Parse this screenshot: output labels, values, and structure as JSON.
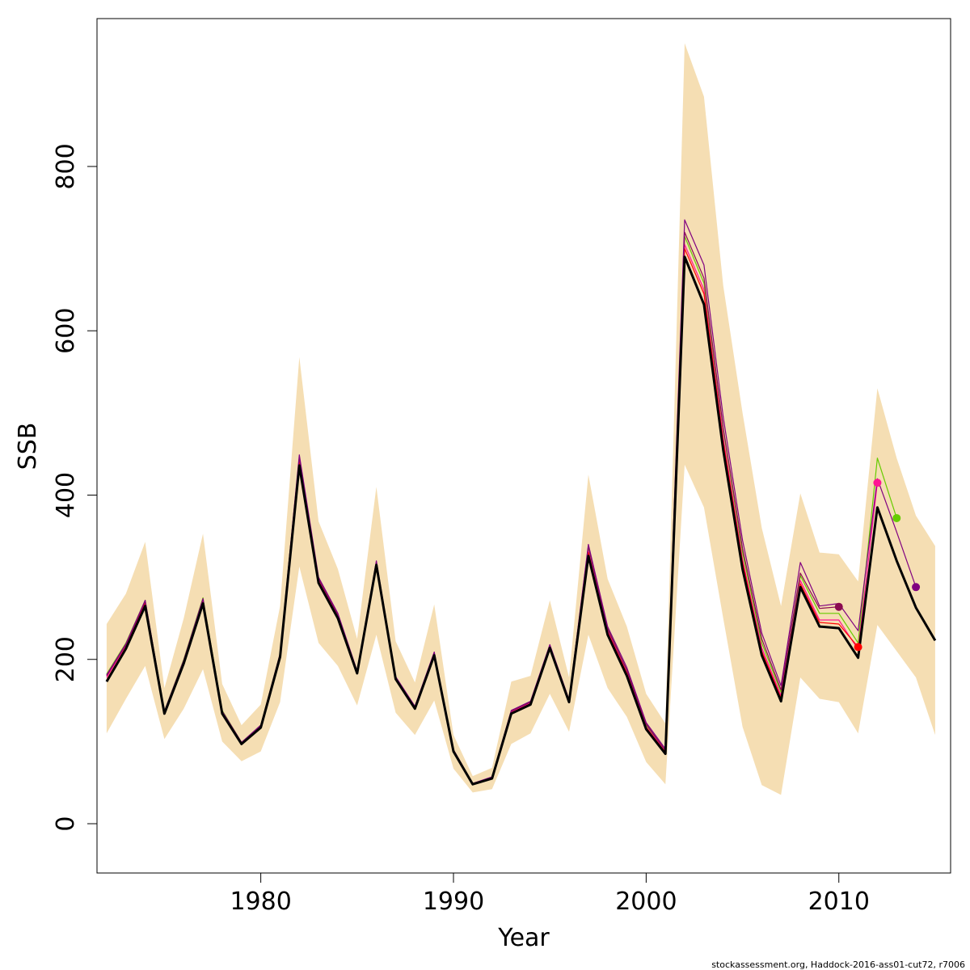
{
  "chart_data": {
    "type": "line",
    "xlabel": "Year",
    "ylabel": "SSB",
    "xlim": [
      1971.5,
      2015.8
    ],
    "ylim": [
      -60,
      980
    ],
    "x_ticks": [
      {
        "value": 1980,
        "label": "1980"
      },
      {
        "value": 1990,
        "label": "1990"
      },
      {
        "value": 2000,
        "label": "2000"
      },
      {
        "value": 2010,
        "label": "2010"
      }
    ],
    "y_ticks": [
      {
        "value": 0,
        "label": "0"
      },
      {
        "value": 200,
        "label": "200"
      },
      {
        "value": 400,
        "label": "400"
      },
      {
        "value": 600,
        "label": "600"
      },
      {
        "value": 800,
        "label": "800"
      }
    ],
    "years": [
      1972,
      1973,
      1974,
      1975,
      1976,
      1977,
      1978,
      1979,
      1980,
      1981,
      1982,
      1983,
      1984,
      1985,
      1986,
      1987,
      1988,
      1989,
      1990,
      1991,
      1992,
      1993,
      1994,
      1995,
      1996,
      1997,
      1998,
      1999,
      2000,
      2001,
      2002,
      2003,
      2004,
      2005,
      2006,
      2007,
      2008,
      2009,
      2010,
      2011,
      2012,
      2013,
      2014,
      2015
    ],
    "band": {
      "color": "#f5deb3",
      "upper": [
        243,
        280,
        343,
        165,
        250,
        353,
        170,
        120,
        145,
        265,
        568,
        368,
        310,
        225,
        410,
        222,
        172,
        267,
        108,
        58,
        68,
        173,
        180,
        272,
        178,
        425,
        298,
        240,
        158,
        122,
        950,
        885,
        655,
        500,
        360,
        265,
        402,
        330,
        328,
        295,
        530,
        445,
        375,
        338
      ],
      "lower": [
        110,
        152,
        192,
        103,
        140,
        188,
        100,
        76,
        88,
        148,
        313,
        220,
        192,
        144,
        230,
        135,
        108,
        150,
        67,
        38,
        42,
        97,
        110,
        158,
        112,
        230,
        165,
        130,
        75,
        48,
        437,
        385,
        250,
        118,
        47,
        35,
        178,
        152,
        148,
        110,
        242,
        210,
        178,
        108
      ]
    },
    "series": [
      {
        "color": "#000000",
        "values": [
          173,
          213,
          265,
          134,
          195,
          268,
          134,
          97,
          117,
          203,
          436,
          293,
          250,
          183,
          315,
          176,
          140,
          205,
          88,
          48,
          55,
          134,
          145,
          214,
          148,
          326,
          230,
          180,
          115,
          85,
          690,
          632,
          455,
          310,
          205,
          149,
          288,
          240,
          238,
          202,
          385,
          320,
          263,
          223
        ]
      },
      {
        "color": "#66cc00",
        "values": [
          182,
          220,
          272,
          137,
          200,
          275,
          138,
          99,
          120,
          207,
          445,
          298,
          255,
          185,
          318,
          178,
          142,
          208,
          90,
          49,
          56,
          137,
          148,
          217,
          150,
          336,
          238,
          186,
          120,
          89,
          715,
          658,
          480,
          330,
          220,
          160,
          302,
          256,
          256,
          220,
          445,
          372
        ]
      },
      {
        "color": "#ff1493",
        "values": [
          178,
          217,
          270,
          136,
          198,
          272,
          136,
          98,
          119,
          205,
          443,
          296,
          253,
          184,
          317,
          177,
          141,
          207,
          89,
          49,
          56,
          136,
          147,
          216,
          149,
          332,
          235,
          184,
          118,
          88,
          705,
          650,
          470,
          322,
          214,
          156,
          296,
          248,
          248,
          212,
          415
        ]
      },
      {
        "color": "#ff0000",
        "values": [
          175,
          215,
          268,
          135,
          197,
          270,
          135,
          98,
          118,
          204,
          440,
          295,
          252,
          184,
          316,
          177,
          141,
          206,
          89,
          48,
          56,
          135,
          146,
          215,
          149,
          330,
          233,
          183,
          117,
          87,
          700,
          645,
          465,
          318,
          210,
          153,
          292,
          245,
          243,
          215
        ]
      },
      {
        "color": "#8b0a50",
        "values": [
          180,
          218,
          271,
          136,
          199,
          273,
          137,
          99,
          119,
          206,
          446,
          298,
          254,
          185,
          318,
          178,
          142,
          208,
          90,
          49,
          56,
          137,
          148,
          217,
          150,
          338,
          237,
          187,
          121,
          89,
          720,
          664,
          482,
          335,
          225,
          163,
          305,
          262,
          264
        ]
      },
      {
        "color": "#800080",
        "values": [
          181,
          219,
          272,
          137,
          199,
          274,
          137,
          99,
          120,
          207,
          449,
          300,
          256,
          186,
          320,
          179,
          143,
          209,
          90,
          49,
          57,
          138,
          149,
          218,
          151,
          340,
          240,
          190,
          123,
          91,
          735,
          680,
          495,
          345,
          232,
          168,
          318,
          265,
          268,
          235,
          420,
          355,
          288
        ]
      }
    ],
    "endpoints": [
      {
        "x": 2010,
        "y": 264,
        "color": "#8b0a50"
      },
      {
        "x": 2011,
        "y": 215,
        "color": "#ff0000"
      },
      {
        "x": 2012,
        "y": 415,
        "color": "#ff1493"
      },
      {
        "x": 2013,
        "y": 372,
        "color": "#66cc00"
      },
      {
        "x": 2014,
        "y": 288,
        "color": "#800080"
      }
    ]
  },
  "footer": "stockassessment.org, Haddock-2016-ass01-cut72, r7006"
}
